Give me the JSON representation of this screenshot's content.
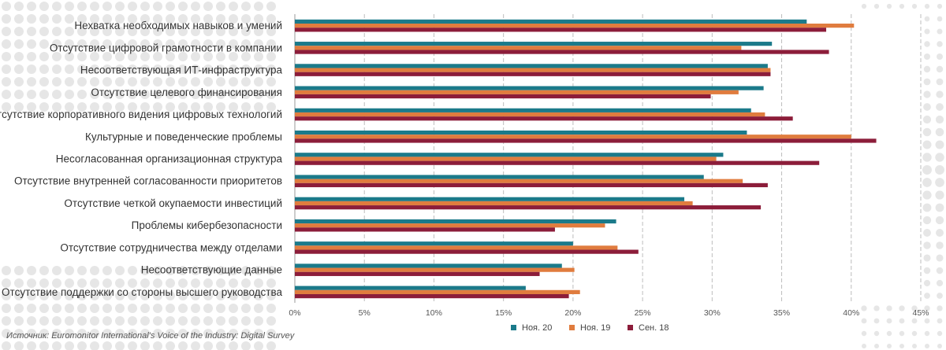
{
  "colors": {
    "background_dots": "#e6e6e6",
    "grid": "#bdbdbd",
    "axis": "#999999"
  },
  "source": "Источник: Euromonitor International's Voice of the Industry: Digital Survey",
  "chart_data": {
    "type": "bar",
    "orientation": "horizontal",
    "categories": [
      "Нехватка необходимых навыков и умений",
      "Отсутствие цифровой грамотности в компании",
      "Несоответствующая ИТ-инфраструктура",
      "Отсутствие целевого финансирования",
      "Отсутствие корпоративного видения цифровых технологий",
      "Культурные и поведенческие проблемы",
      "Несогласованная организационная структура",
      "Отсутствие внутренней согласованности приоритетов",
      "Отсутствие четкой окупаемости инвестиций",
      "Проблемы кибербезопасности",
      "Отсутствие сотрудничества между отделами",
      "Несоответствующие данные",
      "Отсутствие поддержки со стороны высшего руководства"
    ],
    "series": [
      {
        "name": "Ноя. 20",
        "color": "#1b7a8a",
        "values": [
          36.8,
          34.3,
          34.0,
          33.7,
          32.8,
          32.5,
          30.8,
          29.4,
          28.0,
          23.1,
          20.0,
          19.2,
          16.6
        ]
      },
      {
        "name": "Ноя. 19",
        "color": "#e07c3e",
        "values": [
          40.2,
          32.1,
          34.2,
          31.9,
          33.8,
          40.0,
          30.3,
          32.2,
          28.6,
          22.3,
          23.2,
          20.1,
          20.5
        ]
      },
      {
        "name": "Сен. 18",
        "color": "#8c1d3a",
        "values": [
          38.2,
          38.4,
          34.2,
          29.9,
          35.8,
          41.8,
          37.7,
          34.0,
          33.5,
          18.7,
          24.7,
          17.6,
          19.7
        ]
      }
    ],
    "xticks": [
      "0%",
      "5%",
      "10%",
      "15%",
      "20%",
      "25%",
      "30%",
      "35%",
      "40%",
      "45%"
    ],
    "xlim": [
      0,
      45
    ],
    "grid": true,
    "legend_position": "bottom-center"
  }
}
